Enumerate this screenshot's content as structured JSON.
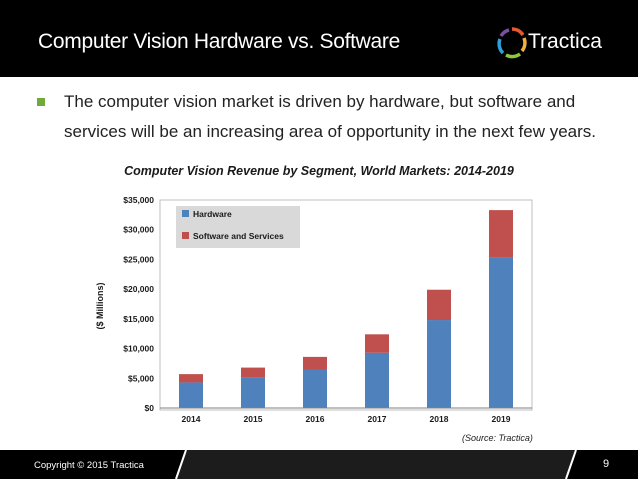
{
  "slide": {
    "title": "Computer Vision Hardware vs. Software",
    "logo_text": "Tractica",
    "bullet_line1": "The computer vision market is driven by hardware, but software and",
    "bullet_line2": "services will be an increasing area of opportunity in the next few years.",
    "source": "(Source: Tractica)",
    "copyright": "Copyright © 2015 Tractica",
    "page_number": "9"
  },
  "colors": {
    "hardware": "#4f81bd",
    "software": "#c0504d",
    "bullet": "#6faa3c",
    "header_bg": "#000000"
  },
  "chart_data": {
    "type": "bar",
    "stacked": true,
    "title": "Computer Vision Revenue by Segment, World Markets: 2014-2019",
    "ylabel": "($ Millions)",
    "xlabel": "",
    "categories": [
      "2014",
      "2015",
      "2016",
      "2017",
      "2018",
      "2019"
    ],
    "series": [
      {
        "name": "Hardware",
        "values": [
          4300,
          5200,
          6400,
          9300,
          14800,
          25300
        ]
      },
      {
        "name": "Software and Services",
        "values": [
          1400,
          1600,
          2200,
          3100,
          5100,
          8000
        ]
      }
    ],
    "ylim": [
      0,
      35000
    ],
    "yticks": [
      "$0",
      "$5,000",
      "$10,000",
      "$15,000",
      "$20,000",
      "$25,000",
      "$30,000",
      "$35,000"
    ],
    "grid": false,
    "legend_position": "top-left"
  }
}
